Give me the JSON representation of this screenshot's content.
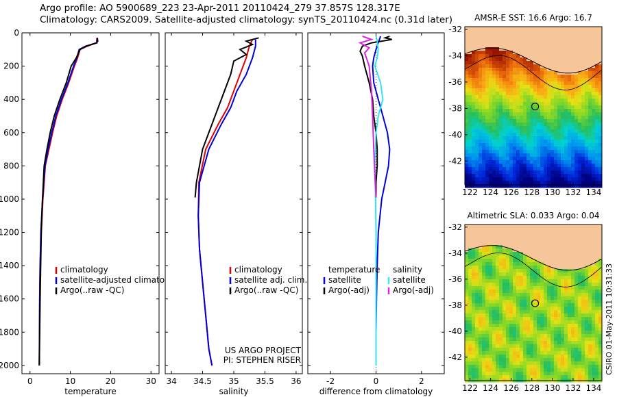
{
  "header": {
    "line1": "Argo profile: AO 5900689_223 23-Apr-2011 20110424_279 37.857S 128.317E",
    "line2": "Climatology: CARS2009. Satellite-adjusted climatology: synTS_20110424.nc (0.31d later)"
  },
  "side_label": "CSIRO 01-May-2011 10:31:33",
  "colors": {
    "climatology": "#e00000",
    "satellite": "#0000dd",
    "argo": "#000000",
    "sal_satellite": "#33e5f0",
    "sal_argo": "#e020e0",
    "land": "#f7c59a"
  },
  "chart_data": [
    {
      "type": "line",
      "panel": "temperature",
      "title": "",
      "xlabel": "temperature",
      "ylabel": "",
      "xlim": [
        -2,
        32
      ],
      "ylim": [
        2050,
        0
      ],
      "xticks": [
        0,
        10,
        20,
        30
      ],
      "yticks": [
        0,
        200,
        400,
        600,
        800,
        1000,
        1200,
        1400,
        1600,
        1800,
        2000
      ],
      "legend_position": "lower-right",
      "series": [
        {
          "name": "climatology",
          "color": "#e00000",
          "x": [
            16.6,
            16.5,
            14.2,
            12.4,
            11.8,
            11.0,
            9.6,
            8.0,
            6.6,
            5.6,
            4.7,
            3.8,
            3.2,
            2.8,
            2.5,
            2.4,
            2.3
          ],
          "y": [
            30,
            60,
            80,
            100,
            150,
            200,
            300,
            400,
            500,
            600,
            700,
            800,
            1000,
            1200,
            1400,
            1600,
            2000
          ]
        },
        {
          "name": "satellite-adjusted climatology",
          "color": "#0000dd",
          "x": [
            16.7,
            16.6,
            13.8,
            12.2,
            11.6,
            10.8,
            9.4,
            7.8,
            6.4,
            5.4,
            4.5,
            3.7,
            3.1,
            2.7,
            2.5,
            2.4,
            2.3
          ],
          "y": [
            30,
            60,
            80,
            100,
            150,
            200,
            300,
            400,
            500,
            600,
            700,
            800,
            1000,
            1200,
            1400,
            1600,
            2000
          ]
        },
        {
          "name": "Argo(..raw -QC)",
          "color": "#000000",
          "x": [
            16.7,
            16.8,
            16.5,
            14.0,
            12.4,
            11.5,
            10.2,
            9.0,
            7.4,
            6.0,
            5.0,
            4.2,
            3.5,
            3.1,
            2.8,
            2.5,
            2.3
          ],
          "y": [
            30,
            50,
            60,
            80,
            100,
            150,
            200,
            300,
            400,
            500,
            600,
            700,
            800,
            1000,
            1200,
            1600,
            2000
          ]
        }
      ]
    },
    {
      "type": "line",
      "panel": "salinity",
      "title": "",
      "xlabel": "salinity",
      "ylabel": "",
      "xlim": [
        33.9,
        36.1
      ],
      "ylim": [
        2050,
        0
      ],
      "xticks": [
        34,
        34.5,
        35,
        35.5,
        36
      ],
      "yticks": [
        0,
        200,
        400,
        600,
        800,
        1000,
        1200,
        1400,
        1600,
        1800,
        2000
      ],
      "legend_position": "lower-right",
      "annotation": [
        "US ARGO PROJECT",
        "PI: STEPHEN RISER"
      ],
      "series": [
        {
          "name": "climatology",
          "color": "#e00000",
          "x": [
            35.3,
            35.25,
            35.2,
            35.1,
            35.0,
            34.9,
            34.75,
            34.55,
            34.44,
            34.43,
            34.45,
            34.5,
            34.55,
            34.6,
            34.65
          ],
          "y": [
            40,
            80,
            150,
            250,
            350,
            450,
            550,
            700,
            900,
            1100,
            1300,
            1500,
            1700,
            1900,
            2000
          ]
        },
        {
          "name": "satellite adj. clim.",
          "color": "#0000dd",
          "x": [
            35.35,
            35.35,
            35.3,
            35.2,
            35.05,
            34.95,
            34.8,
            34.6,
            34.45,
            34.43,
            34.45,
            34.5,
            34.55,
            34.6,
            34.65
          ],
          "y": [
            40,
            80,
            150,
            250,
            350,
            450,
            550,
            700,
            900,
            1100,
            1300,
            1500,
            1700,
            1900,
            2000
          ]
        },
        {
          "name": "Argo(..raw -QC)",
          "color": "#000000",
          "x": [
            35.4,
            35.2,
            35.3,
            35.1,
            35.2,
            35.0,
            34.95,
            34.85,
            34.7,
            34.5,
            34.4,
            34.38
          ],
          "y": [
            30,
            50,
            70,
            100,
            130,
            170,
            250,
            350,
            500,
            700,
            900,
            990
          ]
        }
      ]
    },
    {
      "type": "line",
      "panel": "difference",
      "title": "",
      "xlabel": "difference from climatology",
      "ylabel": "",
      "xlim": [
        -3,
        3
      ],
      "ylim": [
        2050,
        0
      ],
      "xticks": [
        -2,
        0,
        2
      ],
      "yticks": [
        0,
        200,
        400,
        600,
        800,
        1000,
        1200,
        1400,
        1600,
        1800,
        2000
      ],
      "legend_position": "lower",
      "legend_headers": [
        "temperature",
        "salinity"
      ],
      "series": [
        {
          "name": "satellite",
          "group": "temperature",
          "color": "#0000dd",
          "x": [
            0.2,
            0.1,
            0.0,
            -0.1,
            -0.15,
            -0.1,
            0.1,
            0.3,
            0.5,
            0.6,
            0.55,
            0.4,
            0.25,
            0.1,
            0.05,
            0.02,
            0.0,
            0.0
          ],
          "y": [
            20,
            60,
            100,
            150,
            200,
            300,
            400,
            500,
            600,
            700,
            800,
            900,
            1000,
            1200,
            1400,
            1600,
            1800,
            2000
          ]
        },
        {
          "name": "Argo(-adj)",
          "group": "temperature",
          "color": "#000000",
          "x": [
            0.6,
            0.4,
            0.7,
            -0.2,
            -0.6,
            -0.7,
            -0.6,
            -0.5,
            -0.3,
            -0.15,
            -0.1,
            0.0,
            0.05,
            0.05,
            0.0,
            0.0
          ],
          "y": [
            20,
            30,
            40,
            60,
            80,
            110,
            140,
            200,
            300,
            400,
            500,
            600,
            700,
            800,
            900,
            990
          ]
        },
        {
          "name": "satellite",
          "group": "salinity",
          "color": "#33e5f0",
          "x": [
            0.0,
            0.05,
            0.1,
            0.05,
            -0.05,
            0.2,
            0.3,
            0.1,
            0.0,
            -0.05,
            -0.02,
            0.0,
            0.0,
            0.0
          ],
          "y": [
            20,
            50,
            100,
            150,
            200,
            300,
            400,
            500,
            600,
            800,
            1000,
            1200,
            1600,
            2000
          ]
        },
        {
          "name": "Argo(-adj)",
          "group": "salinity",
          "color": "#e020e0",
          "x": [
            -0.6,
            -0.2,
            -0.7,
            -0.3,
            -0.5,
            -0.3,
            -0.2,
            -0.15,
            -0.1,
            -0.05,
            0.0
          ],
          "y": [
            20,
            40,
            60,
            90,
            120,
            200,
            350,
            500,
            700,
            850,
            990
          ]
        }
      ]
    },
    {
      "type": "heatmap",
      "panel": "sst-map",
      "title": "AMSR-E SST: 16.6 Argo: 16.7",
      "xlabel": "",
      "ylabel": "",
      "xlim": [
        121.5,
        134.8
      ],
      "ylim": [
        -43.8,
        -31.8
      ],
      "xticks": [
        122,
        124,
        126,
        128,
        130,
        132,
        134
      ],
      "yticks": [
        -32,
        -34,
        -36,
        -38,
        -40,
        -42
      ],
      "marker": {
        "lon": 128.317,
        "lat": -37.857
      },
      "field": "sst"
    },
    {
      "type": "heatmap",
      "panel": "sla-map",
      "title": "Altimetric SLA: 0.033 Argo: 0.04",
      "xlabel": "",
      "ylabel": "",
      "xlim": [
        121.5,
        134.8
      ],
      "ylim": [
        -43.8,
        -31.8
      ],
      "xticks": [
        122,
        124,
        126,
        128,
        130,
        132,
        134
      ],
      "yticks": [
        -32,
        -34,
        -36,
        -38,
        -40,
        -42
      ],
      "marker": {
        "lon": 128.317,
        "lat": -37.857
      },
      "field": "sla"
    }
  ]
}
